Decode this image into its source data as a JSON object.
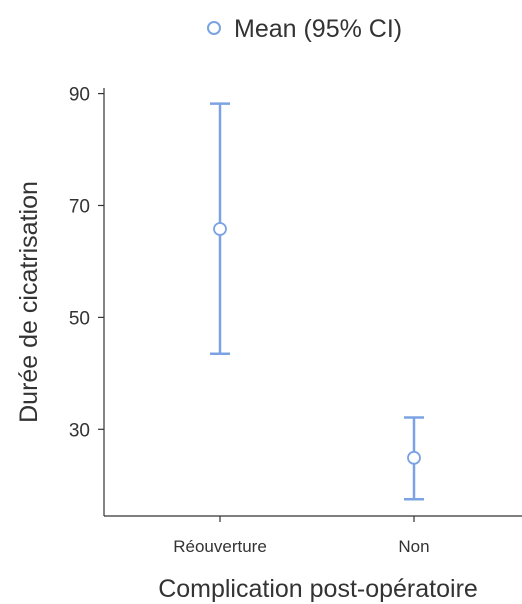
{
  "chart_data": {
    "type": "errorbar",
    "legend": {
      "label": "Mean (95% CI)",
      "position": "top"
    },
    "xlabel": "Complication post-opératoire",
    "ylabel": "Durée de cicatrisation",
    "categories": [
      "Réouverture",
      "Non"
    ],
    "mean": [
      65.8,
      24.9
    ],
    "ci_low": [
      43.5,
      17.5
    ],
    "ci_high": [
      88.2,
      32.1
    ],
    "yticks": [
      30,
      50,
      70,
      90
    ],
    "ylim": [
      14.5,
      91
    ],
    "grid": false,
    "colors": {
      "series": "#7ba3e3",
      "axis": "#333333"
    }
  }
}
